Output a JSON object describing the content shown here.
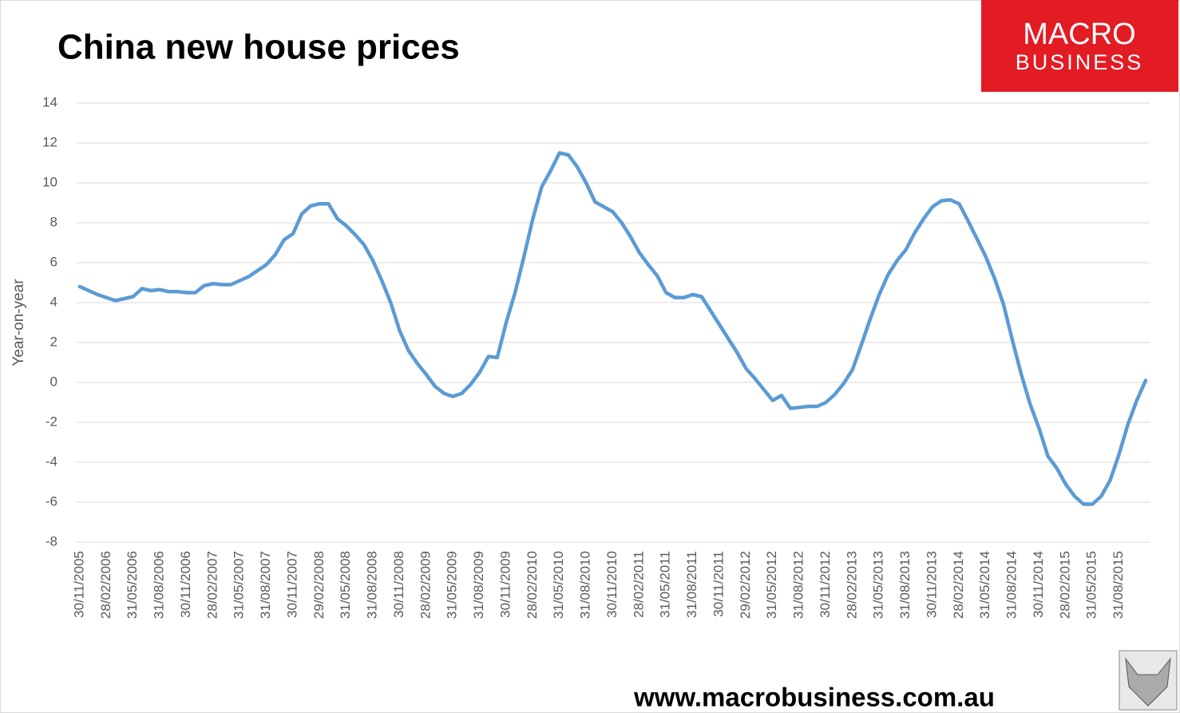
{
  "chart_data": {
    "type": "line",
    "title": "China new house prices",
    "logo_line1": "MACRO",
    "logo_line2": "BUSINESS",
    "footer": "www.macrobusiness.com.au",
    "y_label": "Year-on-year",
    "ylim": [
      -8,
      14
    ],
    "yticks": [
      -8,
      -6,
      -4,
      -2,
      0,
      2,
      4,
      6,
      8,
      10,
      12,
      14
    ],
    "grid": true,
    "categories": [
      "30/11/2005",
      null,
      null,
      "28/02/2006",
      null,
      null,
      "31/05/2006",
      null,
      null,
      "31/08/2006",
      null,
      null,
      "30/11/2006",
      null,
      null,
      "28/02/2007",
      null,
      null,
      "31/05/2007",
      null,
      null,
      "31/08/2007",
      null,
      null,
      "30/11/2007",
      null,
      null,
      "29/02/2008",
      null,
      null,
      "31/05/2008",
      null,
      null,
      "31/08/2008",
      null,
      null,
      "30/11/2008",
      null,
      null,
      "28/02/2009",
      null,
      null,
      "31/05/2009",
      null,
      null,
      "31/08/2009",
      null,
      null,
      "30/11/2009",
      null,
      null,
      "28/02/2010",
      null,
      null,
      "31/05/2010",
      null,
      null,
      "31/08/2010",
      null,
      null,
      "30/11/2010",
      null,
      null,
      "28/02/2011",
      null,
      null,
      "31/05/2011",
      null,
      null,
      "31/08/2011",
      null,
      null,
      "30/11/2011",
      null,
      null,
      "29/02/2012",
      null,
      null,
      "31/05/2012",
      null,
      null,
      "31/08/2012",
      null,
      null,
      "30/11/2012",
      null,
      null,
      "28/02/2013",
      null,
      null,
      "31/05/2013",
      null,
      null,
      "31/08/2013",
      null,
      null,
      "30/11/2013",
      null,
      null,
      "28/02/2014",
      null,
      null,
      "31/05/2014",
      null,
      null,
      "31/08/2014",
      null,
      null,
      "30/11/2014",
      null,
      null,
      "28/02/2015",
      null,
      null,
      "31/05/2015",
      null,
      null,
      "31/08/2015",
      null,
      null,
      null
    ],
    "series": [
      {
        "name": "China new house prices",
        "color": "#5b9bd5",
        "values": [
          4.8,
          4.6,
          4.4,
          4.25,
          4.1,
          4.2,
          4.3,
          4.7,
          4.6,
          4.65,
          4.55,
          4.55,
          4.5,
          4.5,
          4.85,
          4.95,
          4.9,
          4.9,
          5.1,
          5.3,
          5.6,
          5.9,
          6.4,
          7.15,
          7.45,
          8.45,
          8.85,
          8.95,
          8.95,
          8.2,
          7.85,
          7.4,
          6.9,
          6.1,
          5.1,
          4.0,
          2.6,
          1.6,
          0.95,
          0.4,
          -0.2,
          -0.55,
          -0.7,
          -0.55,
          -0.1,
          0.5,
          1.3,
          1.25,
          3.0,
          4.5,
          6.3,
          8.2,
          9.8,
          10.6,
          11.5,
          11.4,
          10.8,
          10.0,
          9.05,
          8.8,
          8.55,
          8.0,
          7.3,
          6.5,
          5.9,
          5.35,
          4.5,
          4.25,
          4.25,
          4.4,
          4.3,
          3.6,
          2.9,
          2.2,
          1.5,
          0.7,
          0.2,
          -0.35,
          -0.9,
          -0.65,
          -1.3,
          -1.25,
          -1.2,
          -1.2,
          -1.0,
          -0.6,
          -0.05,
          0.65,
          1.9,
          3.2,
          4.4,
          5.4,
          6.1,
          6.65,
          7.5,
          8.2,
          8.8,
          9.1,
          9.15,
          8.95,
          8.1,
          7.2,
          6.3,
          5.2,
          3.9,
          2.1,
          0.4,
          -1.1,
          -2.3,
          -3.7,
          -4.3,
          -5.1,
          -5.7,
          -6.1,
          -6.1,
          -5.7,
          -4.9,
          -3.6,
          -2.1,
          -0.9,
          0.1
        ]
      }
    ]
  }
}
